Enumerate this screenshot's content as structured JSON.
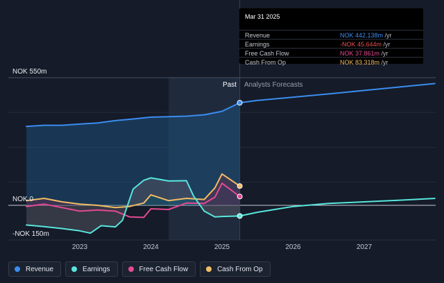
{
  "chart_data": {
    "type": "line",
    "y_labels": {
      "top": "NOK 550m",
      "zero": "NOK 0",
      "bottom": "-NOK 150m"
    },
    "ylim": [
      -150,
      550
    ],
    "xlim": [
      2022.25,
      2028.0
    ],
    "x_ticks": [
      {
        "value": 2023,
        "label": "2023"
      },
      {
        "value": 2024,
        "label": "2024"
      },
      {
        "value": 2025,
        "label": "2025"
      },
      {
        "value": 2026,
        "label": "2026"
      },
      {
        "value": 2027,
        "label": "2027"
      }
    ],
    "past_label": "Past",
    "forecast_label": "Analysts Forecasts",
    "divider_x": 2025.25,
    "highlight_start": 2024.25,
    "series": [
      {
        "name": "Revenue",
        "color": "#3b8df0",
        "x": [
          2022.25,
          2022.5,
          2022.75,
          2023.0,
          2023.25,
          2023.5,
          2023.75,
          2024.0,
          2024.25,
          2024.5,
          2024.75,
          2025.0,
          2025.25
        ],
        "values": [
          340,
          345,
          345,
          350,
          355,
          365,
          372,
          380,
          382,
          384,
          390,
          405,
          442
        ],
        "forecast": {
          "x": [
            2025.25,
            2025.5,
            2026.0,
            2026.5,
            2027.0,
            2027.5,
            2028.0
          ],
          "values": [
            442,
            452,
            466,
            480,
            495,
            510,
            525
          ]
        }
      },
      {
        "name": "Earnings",
        "color": "#58e6dc",
        "x": [
          2022.25,
          2022.5,
          2022.75,
          2023.0,
          2023.15,
          2023.3,
          2023.5,
          2023.6,
          2023.75,
          2023.9,
          2024.0,
          2024.25,
          2024.5,
          2024.6,
          2024.75,
          2024.9,
          2025.0,
          2025.25
        ],
        "values": [
          -85,
          -92,
          -100,
          -110,
          -120,
          -88,
          -93,
          -65,
          70,
          108,
          118,
          105,
          106,
          40,
          -25,
          -50,
          -48,
          -46
        ],
        "forecast": {
          "x": [
            2025.25,
            2025.5,
            2026.0,
            2026.5,
            2027.0,
            2027.5,
            2028.0
          ],
          "values": [
            -46,
            -30,
            -5,
            8,
            15,
            22,
            30
          ]
        }
      },
      {
        "name": "Free Cash Flow",
        "color": "#e44a93",
        "x": [
          2022.25,
          2022.5,
          2022.75,
          2023.0,
          2023.25,
          2023.5,
          2023.7,
          2023.9,
          2024.0,
          2024.25,
          2024.5,
          2024.75,
          2024.9,
          2025.0,
          2025.25
        ],
        "values": [
          -5,
          5,
          -10,
          -25,
          -20,
          -25,
          -50,
          -52,
          -15,
          -18,
          10,
          8,
          35,
          95,
          38
        ]
      },
      {
        "name": "Cash From Op",
        "color": "#f2bd64",
        "x": [
          2022.25,
          2022.5,
          2022.75,
          2023.0,
          2023.25,
          2023.5,
          2023.7,
          2023.9,
          2024.0,
          2024.25,
          2024.5,
          2024.75,
          2024.9,
          2025.0,
          2025.25
        ],
        "values": [
          20,
          30,
          15,
          5,
          0,
          -10,
          -5,
          10,
          45,
          20,
          30,
          25,
          75,
          135,
          83
        ]
      }
    ],
    "tooltip": {
      "title": "Mar 31 2025",
      "rows": [
        {
          "label": "Revenue",
          "value": "NOK 442.138m",
          "unit": " /yr",
          "color": "#3b8df0"
        },
        {
          "label": "Earnings",
          "value": "-NOK 45.644m",
          "unit": " /yr",
          "color": "#e9504f"
        },
        {
          "label": "Free Cash Flow",
          "value": "NOK 37.861m",
          "unit": " /yr",
          "color": "#e44a93"
        },
        {
          "label": "Cash From Op",
          "value": "NOK 83.318m",
          "unit": " /yr",
          "color": "#f2bd64"
        }
      ]
    },
    "legend": [
      {
        "label": "Revenue",
        "color": "#3b8df0"
      },
      {
        "label": "Earnings",
        "color": "#58e6dc"
      },
      {
        "label": "Free Cash Flow",
        "color": "#e44a93"
      },
      {
        "label": "Cash From Op",
        "color": "#f2bd64"
      }
    ]
  }
}
